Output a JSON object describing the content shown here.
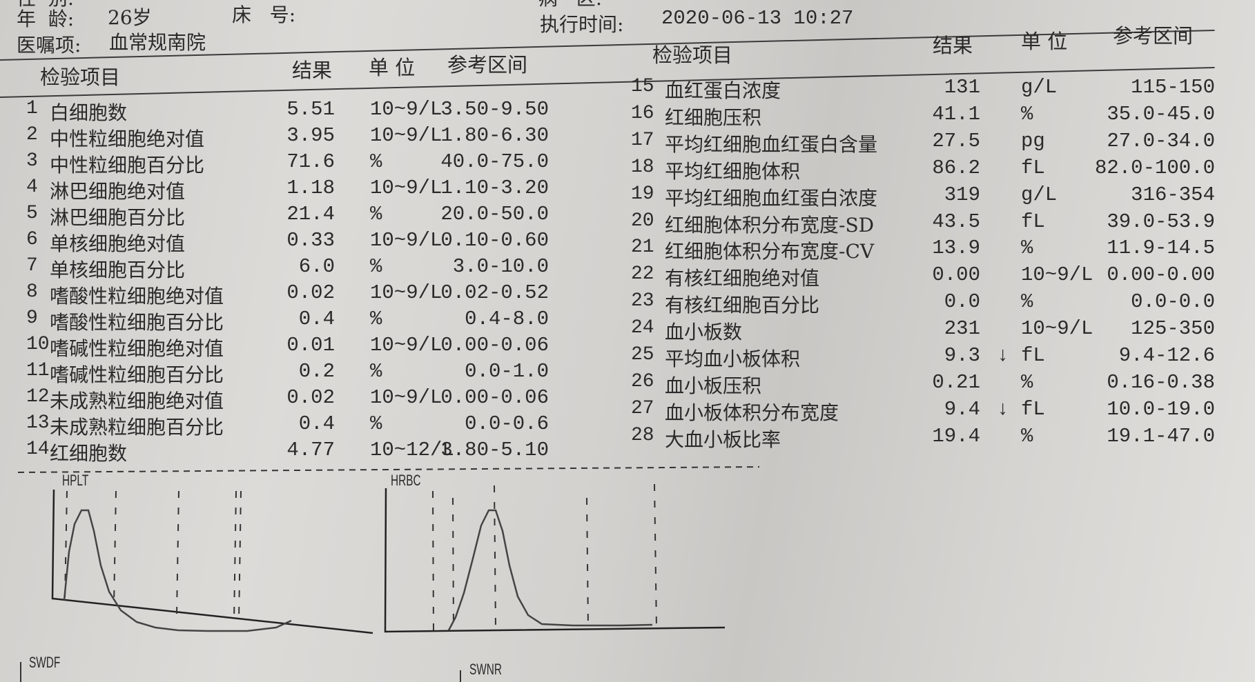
{
  "patient": {
    "gender_label": "性  别:",
    "age_label": "年  龄:",
    "age_value": "26岁",
    "bed_label": "床   号:",
    "ward_label": "病   区:",
    "order_label": "医嘱项:",
    "order_value": "血常规南院",
    "exec_time_label": "执行时间:",
    "exec_time_value": "2020-06-13 10:27"
  },
  "columns": {
    "item": "检验项目",
    "result": "结果",
    "unit": "单 位",
    "range": "参考区间"
  },
  "left_rows": [
    {
      "no": "1",
      "name": "白细胞数",
      "result": "5.51",
      "flag": "",
      "unit": "10~9/L",
      "range": "3.50-9.50"
    },
    {
      "no": "2",
      "name": "中性粒细胞绝对值",
      "result": "3.95",
      "flag": "",
      "unit": "10~9/L",
      "range": "1.80-6.30"
    },
    {
      "no": "3",
      "name": "中性粒细胞百分比",
      "result": "71.6",
      "flag": "",
      "unit": "%",
      "range": "40.0-75.0"
    },
    {
      "no": "4",
      "name": "淋巴细胞绝对值",
      "result": "1.18",
      "flag": "",
      "unit": "10~9/L",
      "range": "1.10-3.20"
    },
    {
      "no": "5",
      "name": "淋巴细胞百分比",
      "result": "21.4",
      "flag": "",
      "unit": "%",
      "range": "20.0-50.0"
    },
    {
      "no": "6",
      "name": "单核细胞绝对值",
      "result": "0.33",
      "flag": "",
      "unit": "10~9/L",
      "range": "0.10-0.60"
    },
    {
      "no": "7",
      "name": "单核细胞百分比",
      "result": "6.0",
      "flag": "",
      "unit": "%",
      "range": "3.0-10.0"
    },
    {
      "no": "8",
      "name": "嗜酸性粒细胞绝对值",
      "result": "0.02",
      "flag": "",
      "unit": "10~9/L",
      "range": "0.02-0.52"
    },
    {
      "no": "9",
      "name": "嗜酸性粒细胞百分比",
      "result": "0.4",
      "flag": "",
      "unit": "%",
      "range": "0.4-8.0"
    },
    {
      "no": "10",
      "name": "嗜碱性粒细胞绝对值",
      "result": "0.01",
      "flag": "",
      "unit": "10~9/L",
      "range": "0.00-0.06"
    },
    {
      "no": "11",
      "name": "嗜碱性粒细胞百分比",
      "result": "0.2",
      "flag": "",
      "unit": "%",
      "range": "0.0-1.0"
    },
    {
      "no": "12",
      "name": "未成熟粒细胞绝对值",
      "result": "0.02",
      "flag": "",
      "unit": "10~9/L",
      "range": "0.00-0.06"
    },
    {
      "no": "13",
      "name": "未成熟粒细胞百分比",
      "result": "0.4",
      "flag": "",
      "unit": "%",
      "range": "0.0-0.6"
    },
    {
      "no": "14",
      "name": "红细胞数",
      "result": "4.77",
      "flag": "",
      "unit": "10~12/L",
      "range": "3.80-5.10"
    }
  ],
  "right_rows": [
    {
      "no": "15",
      "name": "血红蛋白浓度",
      "result": "131",
      "flag": "",
      "unit": "g/L",
      "range": "115-150"
    },
    {
      "no": "16",
      "name": "红细胞压积",
      "result": "41.1",
      "flag": "",
      "unit": "%",
      "range": "35.0-45.0"
    },
    {
      "no": "17",
      "name": "平均红细胞血红蛋白含量",
      "result": "27.5",
      "flag": "",
      "unit": "pg",
      "range": "27.0-34.0"
    },
    {
      "no": "18",
      "name": "平均红细胞体积",
      "result": "86.2",
      "flag": "",
      "unit": "fL",
      "range": "82.0-100.0"
    },
    {
      "no": "19",
      "name": "平均红细胞血红蛋白浓度",
      "result": "319",
      "flag": "",
      "unit": "g/L",
      "range": "316-354"
    },
    {
      "no": "20",
      "name": "红细胞体积分布宽度-SD",
      "result": "43.5",
      "flag": "",
      "unit": "fL",
      "range": "39.0-53.9"
    },
    {
      "no": "21",
      "name": "红细胞体积分布宽度-CV",
      "result": "13.9",
      "flag": "",
      "unit": "%",
      "range": "11.9-14.5"
    },
    {
      "no": "22",
      "name": "有核红细胞绝对值",
      "result": "0.00",
      "flag": "",
      "unit": "10~9/L",
      "range": "0.00-0.00"
    },
    {
      "no": "23",
      "name": "有核红细胞百分比",
      "result": "0.0",
      "flag": "",
      "unit": "%",
      "range": "0.0-0.0"
    },
    {
      "no": "24",
      "name": "血小板数",
      "result": "231",
      "flag": "",
      "unit": "10~9/L",
      "range": "125-350"
    },
    {
      "no": "25",
      "name": "平均血小板体积",
      "result": "9.3",
      "flag": "↓",
      "unit": "fL",
      "range": "9.4-12.6"
    },
    {
      "no": "26",
      "name": "血小板压积",
      "result": "0.21",
      "flag": "",
      "unit": "%",
      "range": "0.16-0.38"
    },
    {
      "no": "27",
      "name": "血小板体积分布宽度",
      "result": "9.4",
      "flag": "↓",
      "unit": "fL",
      "range": "10.0-19.0"
    },
    {
      "no": "28",
      "name": "大血小板比率",
      "result": "19.4",
      "flag": "",
      "unit": "%",
      "range": "19.1-47.0"
    }
  ],
  "histograms": {
    "plt_label": "HPLT",
    "rbc_label": "HRBC",
    "swdf_label": "SWDF",
    "swnr_label": "SWNR"
  },
  "colors": {
    "ink": "#2a2a2a",
    "paper": "#d6d4d1"
  }
}
